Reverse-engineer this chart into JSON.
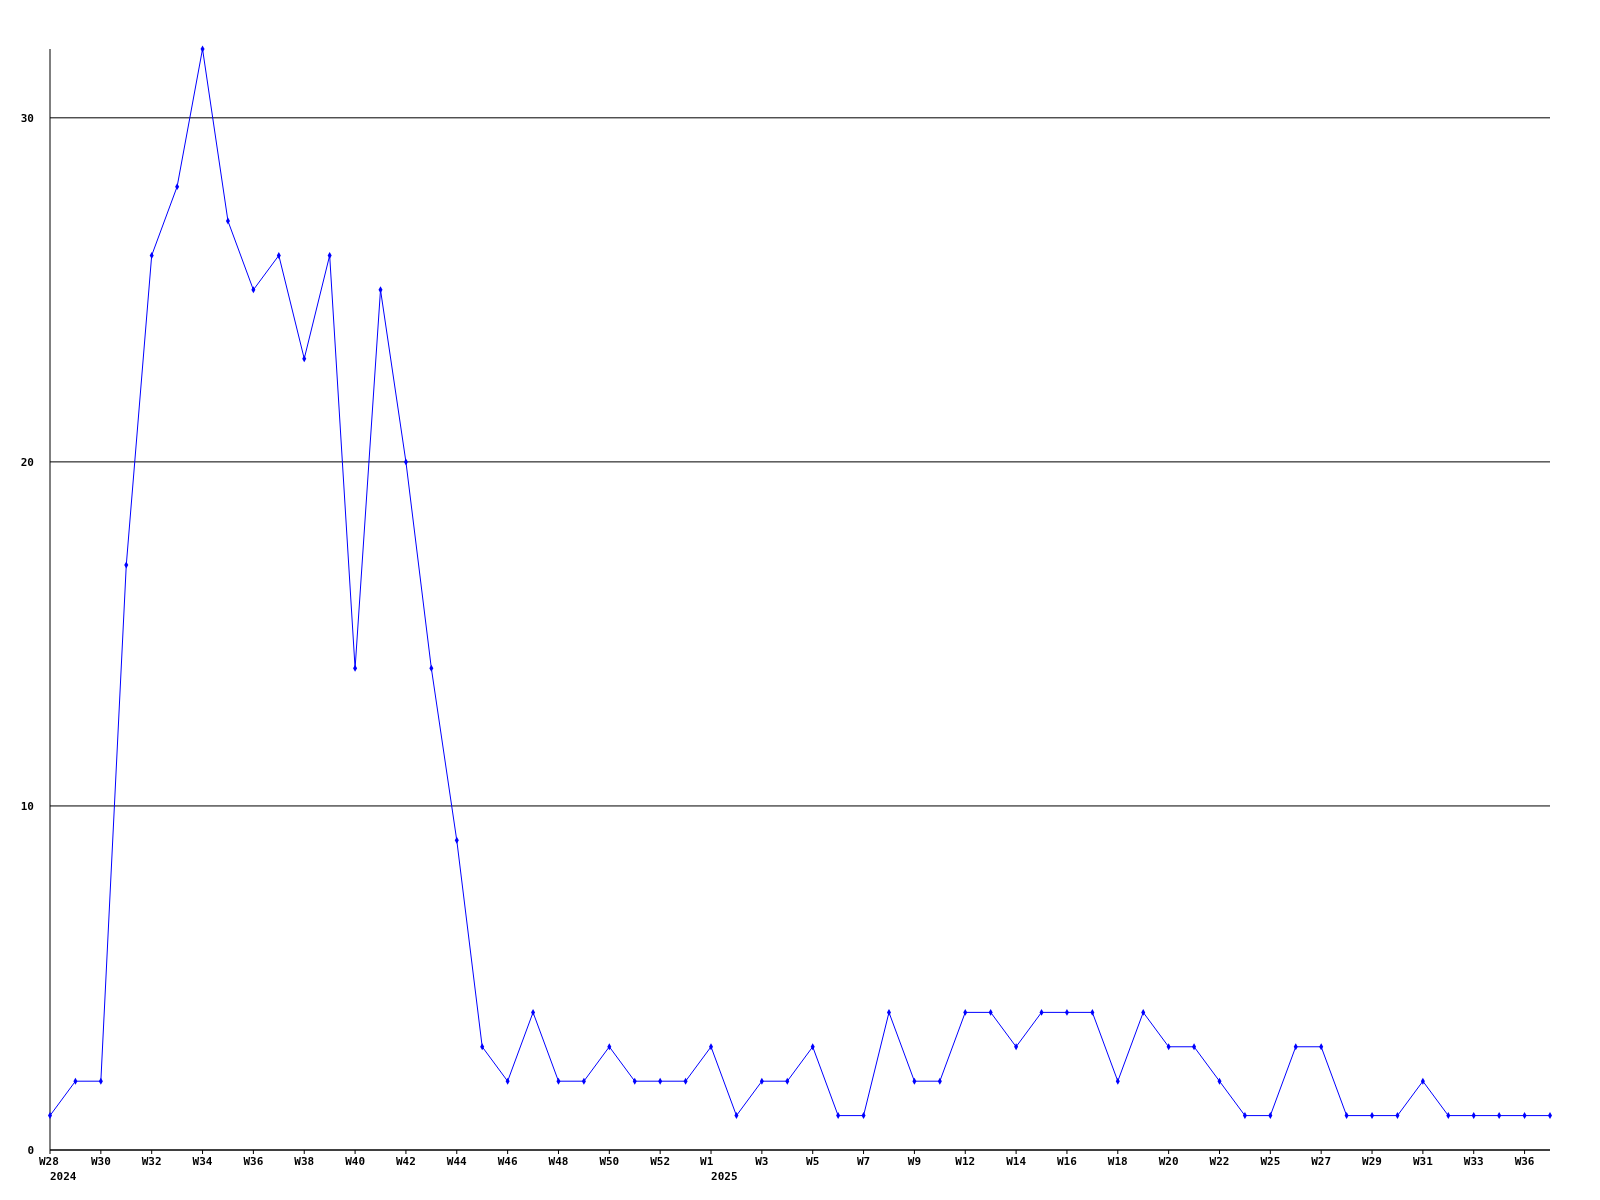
{
  "chart_data": {
    "type": "line",
    "categories": [
      "W28\n2024",
      null,
      "W30",
      null,
      "W32",
      null,
      "W34",
      null,
      "W36",
      null,
      "W38",
      null,
      "W40",
      null,
      "W42",
      null,
      "W44",
      null,
      "W46",
      null,
      "W48",
      null,
      "W50",
      null,
      "W52",
      null,
      "W1\n2025",
      null,
      "W3",
      null,
      "W5",
      null,
      "W7",
      null,
      "W9",
      null,
      "W12",
      null,
      "W14",
      null,
      "W16",
      null,
      "W18",
      null,
      "W20",
      null,
      "W22",
      null,
      "W25",
      null,
      "W27",
      null,
      "W29",
      null,
      "W31",
      null,
      "W33",
      null,
      "W36",
      null
    ],
    "series": [
      {
        "color": "#0000ff",
        "values": [
          1,
          2,
          2,
          17,
          26,
          28,
          32,
          27,
          25,
          26,
          23,
          26,
          14,
          25,
          20,
          14,
          9,
          3,
          2,
          4,
          2,
          2,
          3,
          2,
          2,
          2,
          3,
          1,
          2,
          2,
          3,
          1,
          1,
          4,
          2,
          2,
          4,
          4,
          3,
          4,
          4,
          4,
          2,
          4,
          3,
          3,
          2,
          1,
          1,
          3,
          3,
          1,
          1,
          1,
          2,
          1,
          1,
          1,
          1,
          1
        ]
      }
    ],
    "ylim": [
      0,
      32
    ],
    "yticks": [
      0,
      10,
      20,
      30
    ],
    "grid": "y",
    "marker": "diamond",
    "line_style": "solid"
  }
}
